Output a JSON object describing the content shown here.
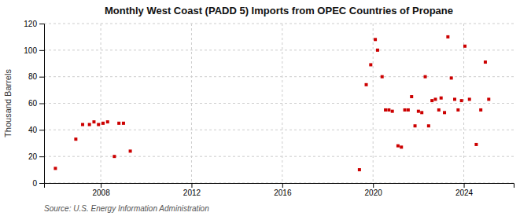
{
  "chart_data": {
    "type": "scatter",
    "title": "Monthly West Coast (PADD 5) Imports from OPEC Countries of Propane",
    "ylabel": "Thousand Barrels",
    "source": "Source: U.S. Energy Information Administration",
    "color": "#cc0000",
    "marker": "square",
    "grid": true,
    "xlim": [
      2005.5,
      2026.2
    ],
    "xticks": [
      2008,
      2012,
      2016,
      2020,
      2024
    ],
    "ylim": [
      0,
      120
    ],
    "yticks": [
      0,
      20,
      40,
      60,
      80,
      100,
      120
    ],
    "x": [
      2006.0,
      2006.9,
      2007.2,
      2007.5,
      2007.7,
      2007.9,
      2008.1,
      2008.3,
      2008.6,
      2008.8,
      2009.0,
      2009.3,
      2019.4,
      2019.7,
      2019.9,
      2020.1,
      2020.2,
      2020.4,
      2020.55,
      2020.7,
      2020.85,
      2021.1,
      2021.25,
      2021.4,
      2021.55,
      2021.7,
      2021.85,
      2022.0,
      2022.15,
      2022.3,
      2022.45,
      2022.6,
      2022.75,
      2022.9,
      2023.0,
      2023.15,
      2023.3,
      2023.45,
      2023.6,
      2023.75,
      2023.9,
      2024.05,
      2024.25,
      2024.55,
      2024.75,
      2024.95,
      2025.1
    ],
    "values": [
      11,
      33,
      44,
      44,
      46,
      44,
      45,
      46,
      20,
      45,
      45,
      24,
      10,
      74,
      89,
      108,
      100,
      80,
      55,
      55,
      54,
      28,
      27,
      55,
      55,
      65,
      43,
      54,
      53,
      80,
      43,
      62,
      63,
      55,
      64,
      53,
      110,
      79,
      63,
      55,
      62,
      103,
      63,
      29,
      55,
      91,
      63
    ]
  }
}
